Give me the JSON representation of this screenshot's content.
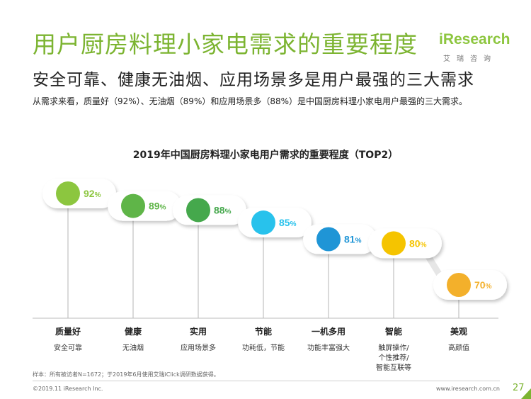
{
  "header": {
    "title": "用户厨房料理小家电需求的重要程度",
    "subtitle": "安全可靠、健康无油烟、应用场景多是用户最强的三大需求",
    "summary": "从需求来看，质量好（92%）、无油烟（89%）和应用场景多（88%）是中国厨房料理小家电用户最强的三大需求。"
  },
  "logo": {
    "text": "iResearch",
    "sub": "艾瑞咨询"
  },
  "colors": {
    "accent": "#7cb431"
  },
  "chart_data": {
    "type": "bar",
    "title": "2019年中国厨房料理小家电用户需求的重要程度（TOP2）",
    "categories": [
      "质量好",
      "健康",
      "实用",
      "节能",
      "一机多用",
      "智能",
      "美观"
    ],
    "descriptions": [
      "安全可靠",
      "无油烟",
      "应用场景多",
      "功耗低，节能",
      "功能丰富强大",
      "触屏操作/个性推荐/智能互联等",
      "高颜值"
    ],
    "values": [
      92,
      89,
      88,
      85,
      81,
      80,
      70
    ],
    "value_labels": [
      "92%",
      "89%",
      "88%",
      "85%",
      "81%",
      "80%",
      "70%"
    ],
    "colors": [
      "#8cc63f",
      "#5fb548",
      "#45a84c",
      "#28c2ec",
      "#1f95d6",
      "#f5c400",
      "#f3b02b"
    ],
    "ylim": [
      70,
      92
    ]
  },
  "footer": {
    "note": "样本：所有被访者N=1672；于2019年6月使用艾瑞iClick调研数据获得。",
    "copyright": "©2019.11 iResearch Inc.",
    "website": "www.iresearch.com.cn",
    "page": "27"
  }
}
